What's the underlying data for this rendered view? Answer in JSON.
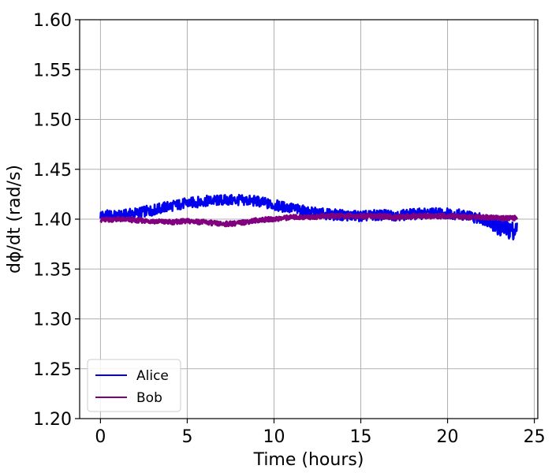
{
  "chart_data": {
    "type": "line",
    "xlabel": "Time (hours)",
    "ylabel": "dϕ/dt (rad/s)",
    "xlim": [
      -1.2,
      25.2
    ],
    "ylim": [
      1.2,
      1.6
    ],
    "xticks": [
      0,
      5,
      10,
      15,
      20,
      25
    ],
    "yticks": [
      1.2,
      1.25,
      1.3,
      1.35,
      1.4,
      1.45,
      1.5,
      1.55,
      1.6
    ],
    "grid": true,
    "legend_position": "lower-left",
    "series": [
      {
        "name": "Alice",
        "color": "#0000ee",
        "x": [
          0,
          1,
          2,
          3,
          4,
          5,
          6,
          7,
          8,
          9,
          10,
          11,
          12,
          13,
          14,
          15,
          16,
          17,
          18,
          19,
          20,
          21,
          22,
          22.5,
          23,
          23.5,
          24
        ],
        "y": [
          1.404,
          1.403,
          1.406,
          1.409,
          1.413,
          1.416,
          1.418,
          1.419,
          1.419,
          1.418,
          1.414,
          1.411,
          1.407,
          1.405,
          1.404,
          1.403,
          1.404,
          1.404,
          1.405,
          1.406,
          1.406,
          1.404,
          1.4,
          1.397,
          1.392,
          1.389,
          1.389
        ]
      },
      {
        "name": "Bob",
        "color": "#800080",
        "x": [
          0,
          1,
          2,
          3,
          4,
          5,
          6,
          7,
          8,
          9,
          10,
          11,
          12,
          13,
          14,
          15,
          16,
          17,
          18,
          19,
          20,
          21,
          22,
          23,
          24
        ],
        "y": [
          1.399,
          1.4,
          1.399,
          1.398,
          1.397,
          1.398,
          1.397,
          1.395,
          1.396,
          1.399,
          1.4,
          1.402,
          1.402,
          1.403,
          1.403,
          1.403,
          1.403,
          1.402,
          1.403,
          1.403,
          1.403,
          1.402,
          1.402,
          1.401,
          1.401
        ]
      }
    ]
  }
}
